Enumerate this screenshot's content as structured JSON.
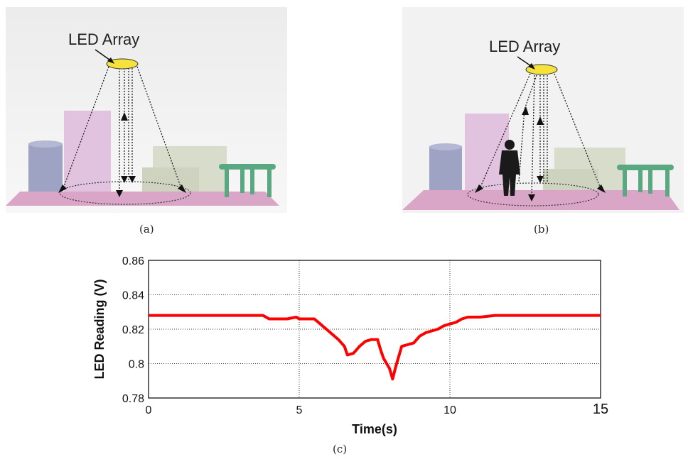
{
  "panels": {
    "a": {
      "label": "LED Array",
      "caption": "(a)"
    },
    "b": {
      "label": "LED Array",
      "caption": "(b)"
    },
    "c": {
      "caption": "(c)"
    }
  },
  "colors": {
    "series": "#ff0000",
    "led": "#f5e23a",
    "floor": "#d9a6c8",
    "box_blue": "#9ea3c4",
    "box_pink": "#e1c3e0",
    "sofa": "#d7dccb",
    "table": "#5aa882"
  },
  "chart_data": {
    "type": "line",
    "title": "",
    "xlabel": "Time(s)",
    "ylabel": "LED Reading (V)",
    "xlim": [
      0,
      15
    ],
    "ylim": [
      0.78,
      0.86
    ],
    "xticks": [
      0,
      5,
      10,
      15
    ],
    "xtick_labels": [
      "0",
      "5",
      "10",
      "15"
    ],
    "yticks": [
      0.78,
      0.8,
      0.82,
      0.84,
      0.86
    ],
    "ytick_labels": [
      "0.78",
      "0.8",
      "0.82",
      "0.84",
      "0.86"
    ],
    "grid": true,
    "series": [
      {
        "name": "",
        "x": [
          0,
          0.5,
          1,
          1.5,
          2,
          2.5,
          3,
          3.5,
          3.8,
          4,
          4.3,
          4.6,
          4.9,
          5,
          5.3,
          5.5,
          5.7,
          5.9,
          6.1,
          6.3,
          6.5,
          6.6,
          6.8,
          7,
          7.2,
          7.4,
          7.6,
          7.7,
          7.8,
          7.9,
          8,
          8.1,
          8.2,
          8.3,
          8.4,
          8.6,
          8.8,
          9,
          9.2,
          9.4,
          9.6,
          9.8,
          10,
          10.2,
          10.4,
          10.6,
          11,
          11.5,
          12,
          12.5,
          13,
          13.5,
          14,
          14.5,
          15
        ],
        "y": [
          0.828,
          0.828,
          0.828,
          0.828,
          0.828,
          0.828,
          0.828,
          0.828,
          0.828,
          0.826,
          0.826,
          0.826,
          0.827,
          0.826,
          0.826,
          0.826,
          0.823,
          0.82,
          0.817,
          0.814,
          0.81,
          0.805,
          0.806,
          0.81,
          0.813,
          0.814,
          0.814,
          0.808,
          0.803,
          0.8,
          0.797,
          0.791,
          0.798,
          0.804,
          0.81,
          0.811,
          0.812,
          0.816,
          0.818,
          0.819,
          0.82,
          0.822,
          0.823,
          0.824,
          0.826,
          0.827,
          0.827,
          0.828,
          0.828,
          0.828,
          0.828,
          0.828,
          0.828,
          0.828,
          0.828
        ]
      }
    ]
  }
}
